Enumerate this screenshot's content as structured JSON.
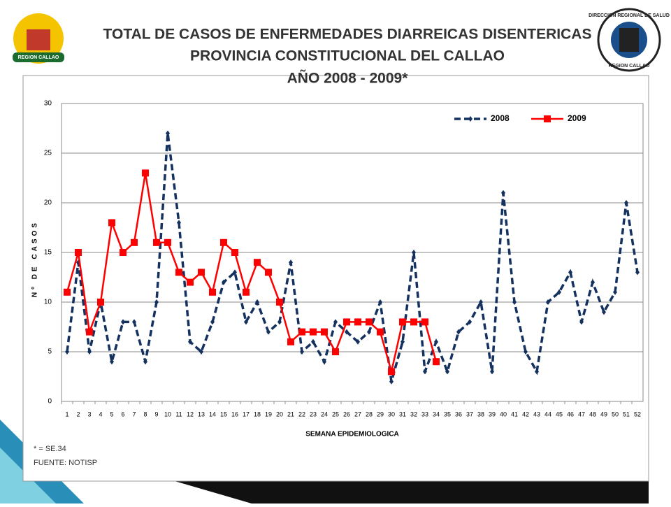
{
  "chart_data": {
    "type": "line",
    "title": [
      "TOTAL DE CASOS DE ENFERMEDADES DIARREICAS  DISENTERICAS",
      "PROVINCIA CONSTITUCIONAL DEL CALLAO",
      "AÑO 2008 - 2009*"
    ],
    "y_label": "Nº DE CASOS",
    "x_label": "SEMANA EPIDEMIOLOGICA",
    "notes": [
      "* = SE.34",
      "FUENTE: NOTISP"
    ],
    "logos": {
      "left": "REGION CALLAO",
      "right_top": "DIRECCION REGIONAL DE SALUD",
      "right_bottom": "REGION CALLAO"
    },
    "categories": [
      1,
      2,
      3,
      4,
      5,
      6,
      7,
      8,
      9,
      10,
      11,
      12,
      13,
      14,
      15,
      16,
      17,
      18,
      19,
      20,
      21,
      22,
      23,
      24,
      25,
      26,
      27,
      28,
      29,
      30,
      31,
      32,
      33,
      34,
      35,
      36,
      37,
      38,
      39,
      40,
      41,
      42,
      43,
      44,
      45,
      46,
      47,
      48,
      49,
      50,
      51,
      52
    ],
    "series": [
      {
        "name": "2008",
        "color": "#14315f",
        "dashed": true,
        "marker": "diamond",
        "values": [
          5,
          14,
          5,
          10,
          4,
          8,
          8,
          4,
          10,
          27,
          18,
          6,
          5,
          8,
          12,
          13,
          8,
          10,
          7,
          8,
          14,
          5,
          6,
          4,
          8,
          7,
          6,
          7,
          10,
          2,
          6,
          15,
          3,
          6,
          3,
          7,
          8,
          10,
          3,
          21,
          10,
          5,
          3,
          10,
          11,
          13,
          8,
          12,
          9,
          11,
          20,
          13
        ]
      },
      {
        "name": "2009",
        "color": "#ff0000",
        "dashed": false,
        "marker": "square",
        "values": [
          11,
          15,
          7,
          10,
          18,
          15,
          16,
          23,
          16,
          16,
          13,
          12,
          13,
          11,
          16,
          15,
          11,
          14,
          13,
          10,
          6,
          7,
          7,
          7,
          5,
          8,
          8,
          8,
          7,
          3,
          8,
          8,
          8,
          4,
          null,
          null,
          null,
          null,
          null,
          null,
          null,
          null,
          null,
          null,
          null,
          null,
          null,
          null,
          null,
          null,
          null,
          null
        ]
      }
    ],
    "ylim": [
      0,
      30
    ],
    "yticks": [
      0,
      5,
      10,
      15,
      20,
      25,
      30
    ],
    "grid": true,
    "legend": "upper right"
  }
}
